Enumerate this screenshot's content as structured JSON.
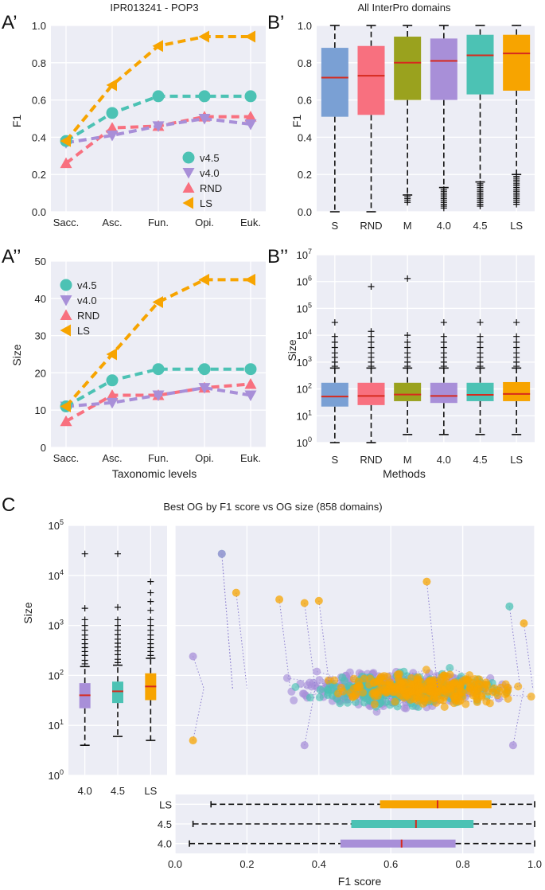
{
  "colors": {
    "v45": "#4cc2b4",
    "v40": "#a88fd8",
    "rnd": "#f8707f",
    "ls": "#f7a400",
    "s": "#7aa0d4",
    "m": "#9aa21e",
    "median": "#d62a1e",
    "panel_bg": "#ecedf5"
  },
  "chart_data": [
    {
      "id": "A1",
      "panel_label": "A’",
      "type": "line",
      "title": "IPR013241 - POP3",
      "xlabel": "",
      "ylabel": "F1",
      "categories": [
        "Sacc.",
        "Asc.",
        "Fun.",
        "Opi.",
        "Euk."
      ],
      "ylim": [
        0,
        1
      ],
      "yticks": [
        "0.0",
        "0.2",
        "0.4",
        "0.6",
        "0.8",
        "1.0"
      ],
      "legend_position": "lower-right",
      "series": [
        {
          "name": "v4.5",
          "marker": "circle",
          "values": [
            0.38,
            0.53,
            0.62,
            0.62,
            0.62
          ]
        },
        {
          "name": "v4.0",
          "marker": "triangle-down",
          "values": [
            0.37,
            0.41,
            0.46,
            0.5,
            0.47
          ]
        },
        {
          "name": "RND",
          "marker": "triangle-up",
          "values": [
            0.26,
            0.45,
            0.46,
            0.51,
            0.51
          ]
        },
        {
          "name": "LS",
          "marker": "triangle-left",
          "values": [
            0.38,
            0.68,
            0.89,
            0.94,
            0.94
          ]
        }
      ]
    },
    {
      "id": "A2",
      "panel_label": "A’’",
      "type": "line",
      "title": "",
      "xlabel": "Taxonomic levels",
      "ylabel": "Size",
      "categories": [
        "Sacc.",
        "Asc.",
        "Fun.",
        "Opi.",
        "Euk."
      ],
      "ylim": [
        0,
        50
      ],
      "yticks": [
        "0",
        "10",
        "20",
        "30",
        "40",
        "50"
      ],
      "legend_position": "upper-left",
      "series": [
        {
          "name": "v4.5",
          "marker": "circle",
          "values": [
            11,
            18,
            21,
            21,
            21
          ]
        },
        {
          "name": "v4.0",
          "marker": "triangle-down",
          "values": [
            11,
            12,
            14,
            16,
            14
          ]
        },
        {
          "name": "RND",
          "marker": "triangle-up",
          "values": [
            7,
            14,
            14,
            16,
            17
          ]
        },
        {
          "name": "LS",
          "marker": "triangle-left",
          "values": [
            11,
            25,
            39,
            45,
            45
          ]
        }
      ]
    },
    {
      "id": "B1",
      "panel_label": "B’",
      "type": "box",
      "title": "All InterPro domains",
      "xlabel": "",
      "ylabel": "F1",
      "ylim": [
        0,
        1
      ],
      "yticks": [
        "0.0",
        "0.2",
        "0.4",
        "0.6",
        "0.8",
        "1.0"
      ],
      "categories": [
        "S",
        "RND",
        "M",
        "4.0",
        "4.5",
        "LS"
      ],
      "boxes": [
        {
          "label": "S",
          "q1": 0.51,
          "median": 0.72,
          "q3": 0.88,
          "whisker_low": 0.0,
          "whisker_high": 1.0,
          "fliers": []
        },
        {
          "label": "RND",
          "q1": 0.52,
          "median": 0.73,
          "q3": 0.89,
          "whisker_low": 0.0,
          "whisker_high": 1.0,
          "fliers": []
        },
        {
          "label": "M",
          "q1": 0.6,
          "median": 0.8,
          "q3": 0.94,
          "whisker_low": 0.09,
          "whisker_high": 1.0,
          "fliers": [
            0.08,
            0.07,
            0.06,
            0.05
          ]
        },
        {
          "label": "4.0",
          "q1": 0.6,
          "median": 0.81,
          "q3": 0.93,
          "whisker_low": 0.13,
          "whisker_high": 1.0,
          "fliers": [
            0.12,
            0.11,
            0.1,
            0.09,
            0.08,
            0.07,
            0.06,
            0.05,
            0.04,
            0.03,
            0.02
          ]
        },
        {
          "label": "4.5",
          "q1": 0.63,
          "median": 0.84,
          "q3": 0.95,
          "whisker_low": 0.16,
          "whisker_high": 1.0,
          "fliers": [
            0.15,
            0.14,
            0.13,
            0.12,
            0.11,
            0.1,
            0.09,
            0.08,
            0.07,
            0.06,
            0.05,
            0.04,
            0.03
          ]
        },
        {
          "label": "LS",
          "q1": 0.65,
          "median": 0.85,
          "q3": 0.95,
          "whisker_low": 0.2,
          "whisker_high": 1.0,
          "fliers": [
            0.19,
            0.18,
            0.17,
            0.16,
            0.15,
            0.14,
            0.13,
            0.12,
            0.11,
            0.1,
            0.09,
            0.08,
            0.07,
            0.06,
            0.05,
            0.04
          ]
        }
      ]
    },
    {
      "id": "B2",
      "panel_label": "B’’",
      "type": "box",
      "scale": "log",
      "title": "",
      "xlabel": "Methods",
      "ylabel": "Size",
      "ylim_log10": [
        0,
        7
      ],
      "ytick_exponents": [
        0,
        1,
        2,
        3,
        4,
        5,
        6,
        7
      ],
      "ytick_base": "10",
      "categories": [
        "S",
        "RND",
        "M",
        "4.0",
        "4.5",
        "LS"
      ],
      "boxes": [
        {
          "label": "S",
          "q1": 22,
          "median": 52,
          "q3": 170,
          "whisker_low": 1,
          "whisker_high": 600,
          "fliers_high": [
            700,
            1000,
            1500,
            2200,
            3500,
            5500,
            9000,
            30000
          ]
        },
        {
          "label": "RND",
          "q1": 25,
          "median": 55,
          "q3": 170,
          "whisker_low": 1,
          "whisker_high": 600,
          "fliers_high": [
            700,
            1000,
            1500,
            2200,
            3500,
            5500,
            9000,
            14000,
            650000
          ]
        },
        {
          "label": "M",
          "q1": 35,
          "median": 62,
          "q3": 170,
          "whisker_low": 2,
          "whisker_high": 600,
          "fliers_high": [
            700,
            1000,
            1500,
            2200,
            3500,
            5500,
            10000,
            1300000
          ]
        },
        {
          "label": "4.0",
          "q1": 30,
          "median": 55,
          "q3": 170,
          "whisker_low": 2,
          "whisker_high": 600,
          "fliers_high": [
            700,
            1000,
            1500,
            2200,
            3500,
            5500,
            9000,
            30000
          ]
        },
        {
          "label": "4.5",
          "q1": 35,
          "median": 60,
          "q3": 170,
          "whisker_low": 2,
          "whisker_high": 600,
          "fliers_high": [
            700,
            1000,
            1500,
            2200,
            3500,
            5500,
            9000,
            30000
          ]
        },
        {
          "label": "LS",
          "q1": 35,
          "median": 65,
          "q3": 180,
          "whisker_low": 2,
          "whisker_high": 600,
          "fliers_high": [
            700,
            1000,
            1500,
            2200,
            3500,
            5500,
            9000,
            30000
          ]
        }
      ]
    },
    {
      "id": "C_box",
      "panel_label": "C",
      "type": "box",
      "scale": "log",
      "title": "Best OG by F1 score vs OG size (858 domains)",
      "ylabel": "Size",
      "ylim_log10": [
        0,
        5
      ],
      "ytick_exponents": [
        0,
        1,
        2,
        3,
        4,
        5
      ],
      "ytick_base": "10",
      "categories": [
        "4.0",
        "4.5",
        "LS"
      ],
      "boxes": [
        {
          "label": "4.0",
          "q1": 22,
          "median": 40,
          "q3": 70,
          "whisker_low": 4,
          "whisker_high": 150,
          "fliers_high": [
            170,
            200,
            250,
            300,
            360,
            430,
            520,
            640,
            800,
            1000,
            1300,
            2200,
            27000
          ]
        },
        {
          "label": "4.5",
          "q1": 28,
          "median": 48,
          "q3": 75,
          "whisker_low": 6,
          "whisker_high": 160,
          "fliers_high": [
            180,
            210,
            260,
            310,
            370,
            440,
            530,
            650,
            800,
            1000,
            1300,
            2300,
            27000
          ]
        },
        {
          "label": "LS",
          "q1": 32,
          "median": 60,
          "q3": 110,
          "whisker_low": 5,
          "whisker_high": 220,
          "fliers_high": [
            250,
            300,
            360,
            430,
            520,
            640,
            800,
            1000,
            1300,
            2000,
            3000,
            4500,
            7500
          ]
        }
      ]
    },
    {
      "id": "C_scatter",
      "type": "scatter",
      "scale_y": "log",
      "xlim": [
        0,
        1
      ],
      "ylim_log10": [
        0,
        5
      ],
      "series": [
        "4.0",
        "4.5",
        "LS"
      ],
      "highlight_points": [
        {
          "series": "4.5",
          "x": 0.13,
          "y": 27000
        },
        {
          "series": "4.0",
          "x": 0.13,
          "y": 27000
        },
        {
          "series": "LS",
          "x": 0.17,
          "y": 4500
        },
        {
          "series": "LS",
          "x": 0.29,
          "y": 3300
        },
        {
          "series": "LS",
          "x": 0.36,
          "y": 2800
        },
        {
          "series": "LS",
          "x": 0.4,
          "y": 3100
        },
        {
          "series": "LS",
          "x": 0.7,
          "y": 7500
        },
        {
          "series": "4.5",
          "x": 0.93,
          "y": 2400
        },
        {
          "series": "LS",
          "x": 0.97,
          "y": 1100
        },
        {
          "series": "4.0",
          "x": 0.05,
          "y": 240
        },
        {
          "series": "LS",
          "x": 0.05,
          "y": 5
        },
        {
          "series": "4.0",
          "x": 0.36,
          "y": 4
        },
        {
          "series": "4.0",
          "x": 0.94,
          "y": 4
        }
      ]
    },
    {
      "id": "C_hbox",
      "type": "box",
      "orientation": "horizontal",
      "xlabel": "F1 score",
      "xlim": [
        0,
        1
      ],
      "xticks": [
        "0.0",
        "0.2",
        "0.4",
        "0.6",
        "0.8",
        "1.0"
      ],
      "categories": [
        "LS",
        "4.5",
        "4.0"
      ],
      "boxes": [
        {
          "label": "LS",
          "q1": 0.57,
          "median": 0.73,
          "q3": 0.88,
          "whisker_low": 0.1,
          "whisker_high": 1.0
        },
        {
          "label": "4.5",
          "q1": 0.49,
          "median": 0.67,
          "q3": 0.83,
          "whisker_low": 0.05,
          "whisker_high": 1.0
        },
        {
          "label": "4.0",
          "q1": 0.46,
          "median": 0.63,
          "q3": 0.78,
          "whisker_low": 0.04,
          "whisker_high": 1.0
        }
      ]
    }
  ]
}
